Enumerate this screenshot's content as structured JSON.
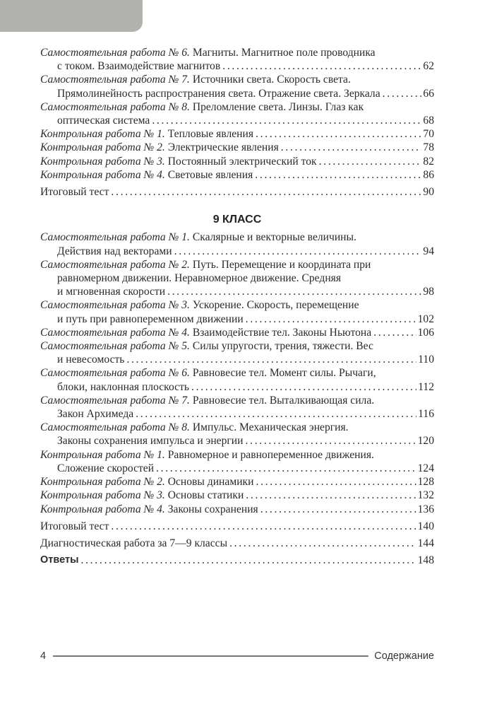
{
  "sections": [
    {
      "heading": "",
      "entries": [
        {
          "label": "Самостоятельная работа № 6.",
          "lines": [
            "Магниты. Магнитное поле проводника",
            "с током. Взаимодействие магнитов"
          ],
          "page": "62"
        },
        {
          "label": "Самостоятельная работа № 7.",
          "lines": [
            "Источники света. Скорость света.",
            "Прямолинейность распространения света. Отражение света. Зеркала"
          ],
          "page": "66"
        },
        {
          "label": "Самостоятельная работа № 8.",
          "lines": [
            "Преломление света. Линзы. Глаз как",
            "оптическая система"
          ],
          "page": "68"
        },
        {
          "label": "Контрольная работа № 1.",
          "lines": [
            "Тепловые явления"
          ],
          "page": "70"
        },
        {
          "label": "Контрольная работа № 2.",
          "lines": [
            "Электрические явления"
          ],
          "page": "78"
        },
        {
          "label": "Контрольная работа № 3.",
          "lines": [
            "Постоянный электрический ток"
          ],
          "page": "82"
        },
        {
          "label": "Контрольная работа № 4.",
          "lines": [
            "Световые явления"
          ],
          "page": "86"
        },
        {
          "label": "",
          "lines": [
            "Итоговый тест"
          ],
          "page": "90",
          "gap": true
        }
      ]
    },
    {
      "heading": "9 КЛАСС",
      "entries": [
        {
          "label": "Самостоятельная работа № 1.",
          "lines": [
            "Скалярные и векторные величины.",
            "Действия над векторами"
          ],
          "page": "94"
        },
        {
          "label": "Самостоятельная работа № 2.",
          "lines": [
            "Путь. Перемещение и координата при",
            "равномерном движении. Неравномерное движение. Средняя",
            "и мгновенная скорости"
          ],
          "page": "98"
        },
        {
          "label": "Самостоятельная работа № 3.",
          "lines": [
            "Ускорение. Скорость, перемещение",
            "и путь при равнопеременном движении"
          ],
          "page": "102"
        },
        {
          "label": "Самостоятельная работа № 4.",
          "lines": [
            "Взаимодействие тел. Законы Ньютона"
          ],
          "page": "106"
        },
        {
          "label": "Самостоятельная работа № 5.",
          "lines": [
            "Силы упругости, трения, тяжести. Вес",
            "и невесомость"
          ],
          "page": "110"
        },
        {
          "label": "Самостоятельная работа № 6.",
          "lines": [
            "Равновесие тел. Момент силы. Рычаги,",
            "блоки, наклонная плоскость"
          ],
          "page": "112"
        },
        {
          "label": "Самостоятельная работа № 7.",
          "lines": [
            "Равновесие тел. Выталкивающая сила.",
            "Закон Архимеда"
          ],
          "page": "116"
        },
        {
          "label": "Самостоятельная работа № 8.",
          "lines": [
            "Импульс. Механическая энергия.",
            "Законы сохранения импульса и энергии"
          ],
          "page": "120"
        },
        {
          "label": "Контрольная работа № 1.",
          "lines": [
            "Равномерное и равнопеременное движения.",
            "Сложение скоростей"
          ],
          "page": "124"
        },
        {
          "label": "Контрольная работа № 2.",
          "lines": [
            "Основы динамики"
          ],
          "page": "128"
        },
        {
          "label": "Контрольная работа № 3.",
          "lines": [
            "Основы статики"
          ],
          "page": "132"
        },
        {
          "label": "Контрольная работа № 4.",
          "lines": [
            "Законы сохранения"
          ],
          "page": "136"
        },
        {
          "label": "",
          "lines": [
            "Итоговый тест"
          ],
          "page": "140",
          "gap": true
        },
        {
          "label": "",
          "lines": [
            "Диагностическая работа за 7—9 классы"
          ],
          "page": "144",
          "gap": true
        },
        {
          "label": "",
          "lines": [
            "Ответы"
          ],
          "page": "148",
          "gap": true,
          "bold": true
        }
      ]
    }
  ],
  "footer": {
    "page_number": "4",
    "running_title": "Содержание"
  },
  "colors": {
    "tab": "#b1b2ae",
    "text": "#2a2a2a"
  }
}
